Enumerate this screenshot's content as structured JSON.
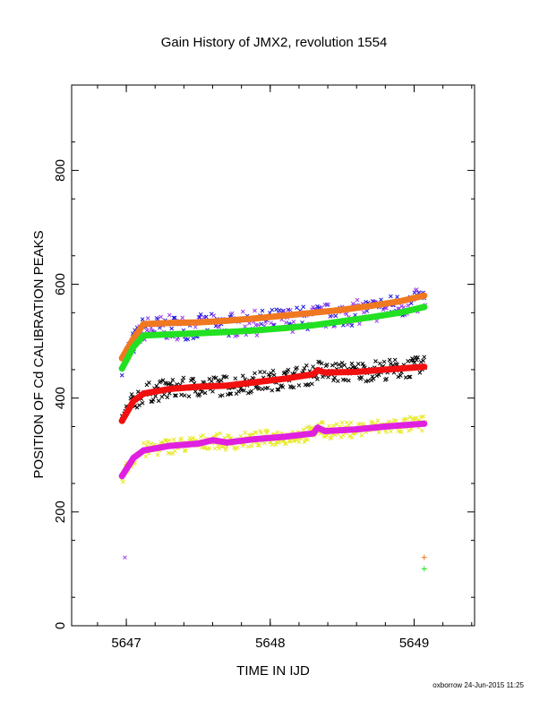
{
  "chart_data": {
    "type": "scatter",
    "title": "Gain History of JMX2, revolution 1554",
    "xlabel": "TIME IN IJD",
    "ylabel": "POSITION OF Cd CALIBRATION PEAKS",
    "xlim": [
      5646.62,
      5649.42
    ],
    "ylim": [
      0,
      950
    ],
    "x_ticks": [
      5647,
      5648,
      5649
    ],
    "y_ticks": [
      0,
      200,
      400,
      600,
      800
    ],
    "grid": false,
    "footer": "oxborrow 24-Jun-2015 11:25",
    "colors": {
      "upper_scatter_a": "#9a3cf0",
      "upper_scatter_b": "#1c1cd8",
      "upper_fit": "#f07820",
      "upper_fit_b": "#22e022",
      "mid_scatter": "#000000",
      "mid_fit": "#f01010",
      "low_scatter": "#e8e820",
      "low_fit": "#e020e0"
    },
    "series": [
      {
        "role": "upper-fit",
        "color": "#f07820",
        "x": [
          5646.97,
          5647.05,
          5647.12,
          5647.3,
          5647.5,
          5647.7,
          5647.9,
          5648.1,
          5648.3,
          5648.5,
          5648.7,
          5648.9,
          5649.07
        ],
        "y": [
          470,
          505,
          530,
          532,
          533,
          536,
          540,
          545,
          550,
          555,
          562,
          570,
          580
        ]
      },
      {
        "role": "upper-fit-b",
        "color": "#22e022",
        "x": [
          5646.97,
          5647.05,
          5647.12,
          5647.3,
          5647.5,
          5647.7,
          5647.9,
          5648.1,
          5648.3,
          5648.5,
          5648.7,
          5648.9,
          5649.07
        ],
        "y": [
          452,
          490,
          510,
          512,
          514,
          516,
          519,
          523,
          528,
          535,
          542,
          550,
          560
        ]
      },
      {
        "role": "mid-fit",
        "color": "#f01010",
        "x": [
          5646.97,
          5647.05,
          5647.12,
          5647.3,
          5647.5,
          5647.7,
          5647.9,
          5648.1,
          5648.3,
          5648.33,
          5648.38,
          5648.6,
          5648.8,
          5649.07
        ],
        "y": [
          360,
          395,
          408,
          416,
          420,
          422,
          428,
          434,
          442,
          449,
          445,
          446,
          450,
          455
        ]
      },
      {
        "role": "low-fit",
        "color": "#e020e0",
        "x": [
          5646.97,
          5647.05,
          5647.12,
          5647.3,
          5647.5,
          5647.6,
          5647.7,
          5647.9,
          5648.1,
          5648.3,
          5648.33,
          5648.38,
          5648.6,
          5648.8,
          5649.07
        ],
        "y": [
          263,
          295,
          308,
          316,
          320,
          326,
          322,
          328,
          332,
          338,
          348,
          342,
          345,
          350,
          355
        ]
      }
    ],
    "outliers": [
      {
        "x": 5646.99,
        "y": 120,
        "color": "#9a3cf0",
        "marker": "x"
      },
      {
        "x": 5649.07,
        "y": 120,
        "color": "#f07820",
        "marker": "+"
      },
      {
        "x": 5649.07,
        "y": 100,
        "color": "#22e022",
        "marker": "+"
      }
    ]
  }
}
